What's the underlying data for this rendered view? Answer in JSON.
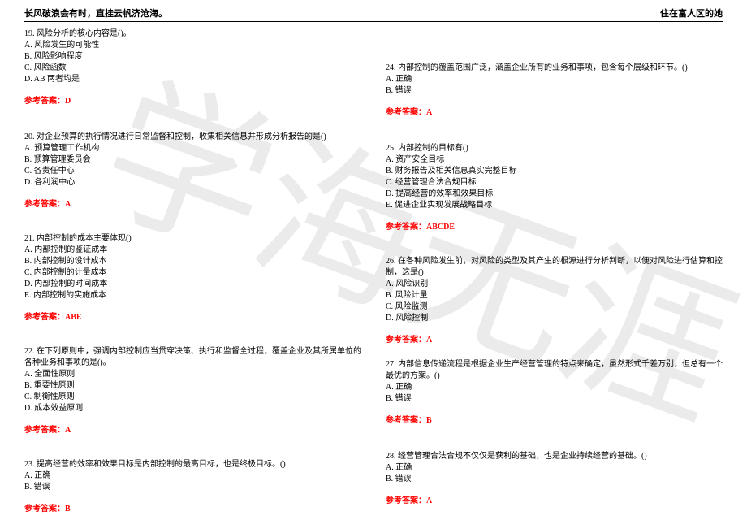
{
  "header": {
    "left": "长风破浪会有时，直挂云帆济沧海。",
    "right": "住在富人区的她"
  },
  "watermark": "学海无涯",
  "answer_prefix": "参考答案：",
  "left_questions": [
    {
      "stem": "19. 风险分析的核心内容是()。",
      "options": [
        "A. 风险发生的可能性",
        "B. 风险影响程度",
        "C. 风险函数",
        "D. AB 两者均是"
      ],
      "answer": "D",
      "spacer": "none"
    },
    {
      "stem": "20. 对企业预算的执行情况进行日常监督和控制，收集相关信息并形成分析报告的是()",
      "options": [
        "A. 预算管理工作机构",
        "B. 预算管理委员会",
        "C. 各责任中心",
        "D. 各利润中心"
      ],
      "answer": "A",
      "spacer": "lg"
    },
    {
      "stem": "21. 内部控制的成本主要体现()",
      "options": [
        "A. 内部控制的鉴证成本",
        "B. 内部控制的设计成本",
        "C. 内部控制的计量成本",
        "D. 内部控制的时间成本",
        "E. 内部控制的实施成本"
      ],
      "answer": "ABE",
      "spacer": "md"
    },
    {
      "stem": "22. 在下列原则中，强调内部控制应当贯穿决策、执行和监督全过程，覆盖企业及其所属单位的各种业务和事项的是()。",
      "options": [
        "A. 全面性原则",
        "B. 重要性原则",
        "C. 制衡性原则",
        "D. 成本效益原则"
      ],
      "answer": "A",
      "spacer": "md"
    },
    {
      "stem": "23. 提高经营的效率和效果目标是内部控制的最高目标，也是终极目标。()",
      "options": [
        "A. 正确",
        "B. 错误"
      ],
      "answer": "B",
      "spacer": "md"
    }
  ],
  "right_questions": [
    {
      "stem": "24. 内部控制的覆盖范围广泛，涵盖企业所有的业务和事项，包含每个层级和环节。()",
      "options": [
        "A. 正确",
        "B. 错误"
      ],
      "answer": "A",
      "spacer": "top"
    },
    {
      "stem": "25. 内部控制的目标有()",
      "options": [
        "A. 资产安全目标",
        "B. 财务报告及相关信息真实完整目标",
        "C. 经营管理合法合规目标",
        "D. 提高经营的效率和效果目标",
        "E. 促进企业实现发展战略目标"
      ],
      "answer": "ABCDE",
      "spacer": "lg"
    },
    {
      "stem": "26. 在各种风险发生前，对风险的类型及其产生的根源进行分析判断，以便对风险进行估算和控制，这是()",
      "options": [
        "A. 风险识别",
        "B. 风险计量",
        "C. 风险监测",
        "D. 风险控制"
      ],
      "answer": "A",
      "spacer": "md"
    },
    {
      "stem": "27. 内部信息传递流程是根据企业生产经营管理的特点来确定，虽然形式千差万别，但总有一个最优的方案。()",
      "options": [
        "A. 正确",
        "B. 错误"
      ],
      "answer": "B",
      "spacer": "sm"
    },
    {
      "stem": "28. 经营管理合法合规不仅仅是获利的基础，也是企业持续经营的基础。()",
      "options": [
        "A. 正确",
        "B. 错误"
      ],
      "answer": "A",
      "spacer": "lg"
    }
  ]
}
